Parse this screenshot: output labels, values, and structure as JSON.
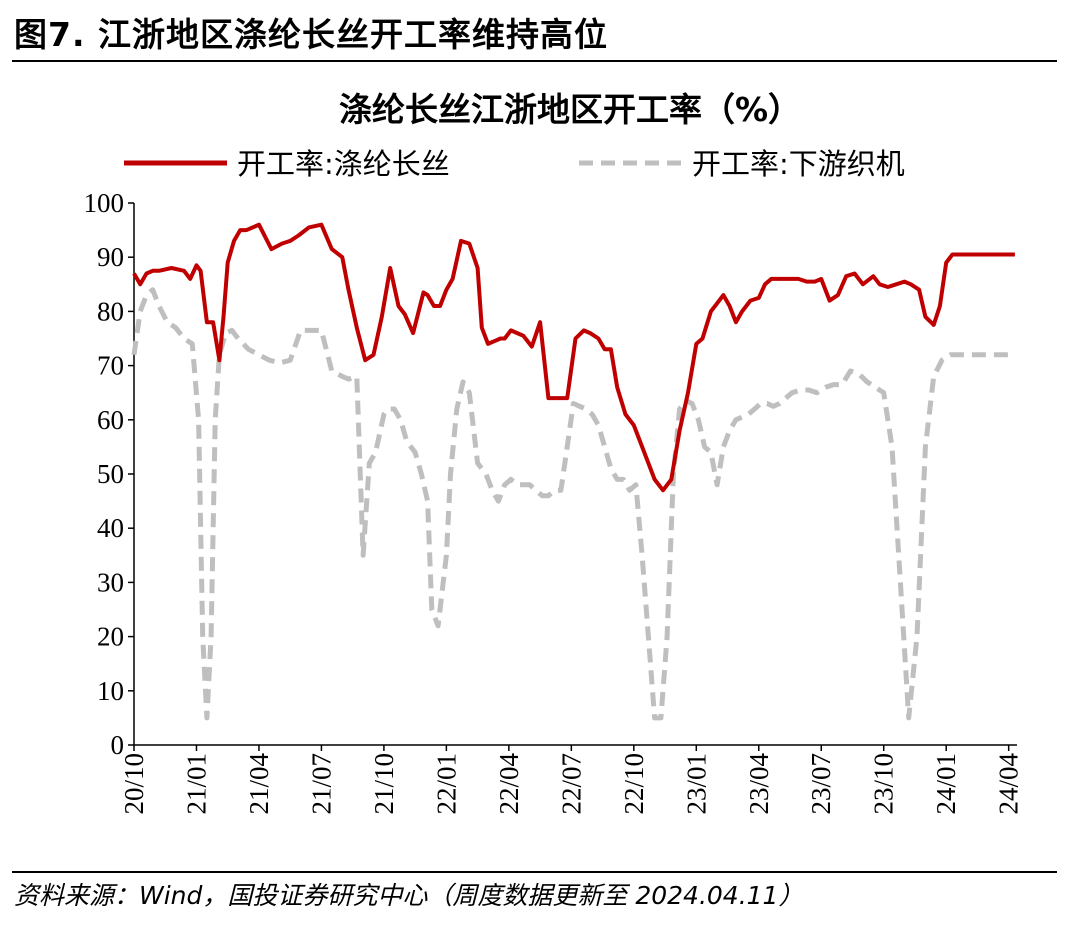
{
  "figure": {
    "title": "图7. 江浙地区涤纶长丝开工率维持高位",
    "source": "资料来源：Wind，国投证券研究中心（周度数据更新至 2024.04.11）"
  },
  "chart_data": {
    "type": "line",
    "title": "涤纶长丝江浙地区开工率（%）",
    "xlabel": "",
    "ylabel": "",
    "ylim": [
      0,
      100
    ],
    "yticks": [
      0,
      10,
      20,
      30,
      40,
      50,
      60,
      70,
      80,
      90,
      100
    ],
    "xlim": [
      0,
      42.4
    ],
    "xticks": [
      {
        "pos": 0,
        "label": "20/10"
      },
      {
        "pos": 3,
        "label": "21/01"
      },
      {
        "pos": 6,
        "label": "21/04"
      },
      {
        "pos": 9,
        "label": "21/07"
      },
      {
        "pos": 12,
        "label": "21/10"
      },
      {
        "pos": 15,
        "label": "22/01"
      },
      {
        "pos": 18,
        "label": "22/04"
      },
      {
        "pos": 21,
        "label": "22/07"
      },
      {
        "pos": 24,
        "label": "22/10"
      },
      {
        "pos": 27,
        "label": "23/01"
      },
      {
        "pos": 30,
        "label": "23/04"
      },
      {
        "pos": 33,
        "label": "23/07"
      },
      {
        "pos": 36,
        "label": "23/10"
      },
      {
        "pos": 39,
        "label": "24/01"
      },
      {
        "pos": 42,
        "label": "24/04"
      }
    ],
    "legend_position": "top",
    "grid": false,
    "series": [
      {
        "name": "开工率:涤纶长丝",
        "color": "#c00000",
        "style": "solid",
        "x": [
          0,
          0.3,
          0.6,
          0.9,
          1.2,
          1.8,
          2.4,
          2.7,
          3.0,
          3.2,
          3.5,
          3.8,
          4.1,
          4.3,
          4.5,
          4.8,
          5.1,
          5.4,
          5.7,
          6.0,
          6.6,
          7.1,
          7.5,
          7.9,
          8.4,
          9.0,
          9.5,
          10.0,
          10.3,
          10.7,
          11.1,
          11.5,
          11.9,
          12.3,
          12.7,
          13.0,
          13.4,
          13.9,
          14.1,
          14.4,
          14.7,
          15.0,
          15.3,
          15.7,
          16.1,
          16.5,
          16.7,
          17.0,
          17.3,
          17.6,
          17.8,
          18.1,
          18.4,
          18.7,
          19.1,
          19.5,
          19.9,
          20.2,
          20.5,
          20.8,
          21.2,
          21.6,
          21.9,
          22.3,
          22.6,
          22.9,
          23.2,
          23.6,
          24.0,
          24.3,
          24.6,
          25.0,
          25.4,
          25.8,
          26.2,
          26.6,
          27.0,
          27.3,
          27.7,
          28.0,
          28.3,
          28.6,
          28.9,
          29.2,
          29.6,
          30.0,
          30.3,
          30.6,
          31.0,
          31.3,
          31.6,
          31.9,
          32.3,
          32.7,
          33.0,
          33.4,
          33.8,
          34.2,
          34.6,
          35.0,
          35.5,
          35.8,
          36.2,
          36.6,
          37.0,
          37.3,
          37.7,
          38.0,
          38.4,
          38.7,
          39.0,
          39.3,
          39.6,
          39.9,
          40.1,
          40.4,
          40.8,
          41.2,
          41.6,
          42.0,
          42.3
        ],
        "y": [
          87,
          85,
          87,
          87.5,
          87.5,
          88,
          87.5,
          86,
          88.5,
          87.5,
          78,
          78,
          71,
          79,
          89,
          93,
          95,
          95,
          95.5,
          96,
          91.5,
          92.5,
          93,
          94,
          95.5,
          96,
          91.5,
          90,
          84,
          77,
          71,
          72,
          79,
          88,
          81,
          79.5,
          76,
          83.5,
          83,
          81,
          81,
          84,
          86,
          93,
          92.5,
          88,
          77,
          74,
          74.5,
          75,
          75,
          76.5,
          76,
          75.5,
          73.5,
          78,
          64,
          64,
          64,
          64,
          75,
          76.5,
          76,
          75,
          73,
          73,
          66,
          61,
          59,
          56,
          53,
          49,
          47,
          49,
          58,
          65,
          74,
          75,
          80,
          81.5,
          83,
          81,
          78,
          80,
          82,
          82.5,
          85,
          86,
          86,
          86,
          86,
          86,
          85.5,
          85.5,
          86,
          82,
          83,
          86.5,
          87,
          85,
          86.5,
          85,
          84.5,
          85,
          85.5,
          85,
          84,
          79,
          77.5,
          81,
          89,
          90.5,
          90.5,
          90.5,
          90.5,
          90.5,
          90.5,
          90.5,
          90.5,
          90.5,
          90.5
        ]
      },
      {
        "name": "开工率:下游织机",
        "color": "#bfbfbf",
        "style": "dashed",
        "x": [
          0,
          0.3,
          0.6,
          0.9,
          1.2,
          1.6,
          2.0,
          2.4,
          2.8,
          3.1,
          3.3,
          3.5,
          3.7,
          3.9,
          4.1,
          4.4,
          4.7,
          5.0,
          5.5,
          6.0,
          6.5,
          7.0,
          7.5,
          8.0,
          8.5,
          9.0,
          9.5,
          10.0,
          10.3,
          10.7,
          11.0,
          11.3,
          11.6,
          12.0,
          12.2,
          12.5,
          12.8,
          13.1,
          13.5,
          13.8,
          14.1,
          14.3,
          14.6,
          15.0,
          15.2,
          15.5,
          15.8,
          16.1,
          16.5,
          16.9,
          17.2,
          17.5,
          17.8,
          18.1,
          18.4,
          18.7,
          19.0,
          19.3,
          19.6,
          19.9,
          20.2,
          20.5,
          20.8,
          21.1,
          21.4,
          21.7,
          22.0,
          22.3,
          22.6,
          22.9,
          23.2,
          23.5,
          23.8,
          24.1,
          24.4,
          24.7,
          25.0,
          25.3,
          25.6,
          25.9,
          26.2,
          26.5,
          26.8,
          27.1,
          27.4,
          27.7,
          28.0,
          28.3,
          28.6,
          28.9,
          29.2,
          29.5,
          29.8,
          30.1,
          30.4,
          30.7,
          31.0,
          31.3,
          31.6,
          32.0,
          32.4,
          32.8,
          33.2,
          33.6,
          34.0,
          34.4,
          34.8,
          35.2,
          35.6,
          36.0,
          36.4,
          36.8,
          37.2,
          37.6,
          38.0,
          38.4,
          38.8,
          39.2,
          39.6,
          39.9,
          40.1,
          40.3,
          40.5,
          40.7,
          40.9,
          41.1,
          41.3,
          41.6,
          41.9,
          42.3
        ],
        "y": [
          72,
          80,
          83,
          84,
          81,
          78,
          77,
          75,
          74,
          60,
          20,
          5,
          20,
          60,
          72,
          76,
          76.5,
          75,
          73,
          72,
          71,
          70.5,
          71,
          76.5,
          76.5,
          76.5,
          69,
          68,
          67.5,
          68,
          35,
          52,
          54,
          61,
          62,
          62,
          60,
          56,
          54,
          50,
          45,
          25,
          22,
          35,
          50,
          62,
          67,
          65,
          52,
          50,
          47,
          45,
          48,
          49,
          48,
          48,
          48,
          47,
          46,
          46,
          47,
          47,
          55,
          63,
          62.5,
          62,
          61,
          59,
          55,
          51,
          49,
          49,
          47,
          48,
          35,
          20,
          5,
          5,
          20,
          50,
          62,
          63.5,
          63,
          60,
          55,
          54,
          48,
          55,
          58,
          60,
          60.5,
          61,
          62,
          63,
          63,
          62.5,
          63,
          64,
          65,
          65.5,
          65.5,
          65,
          66,
          66.5,
          66.5,
          69,
          68.5,
          67,
          66,
          65,
          55,
          30,
          5,
          20,
          55,
          68,
          71,
          72,
          72,
          72,
          72,
          72,
          72,
          72,
          72,
          72,
          72,
          72,
          72,
          72
        ]
      }
    ]
  }
}
